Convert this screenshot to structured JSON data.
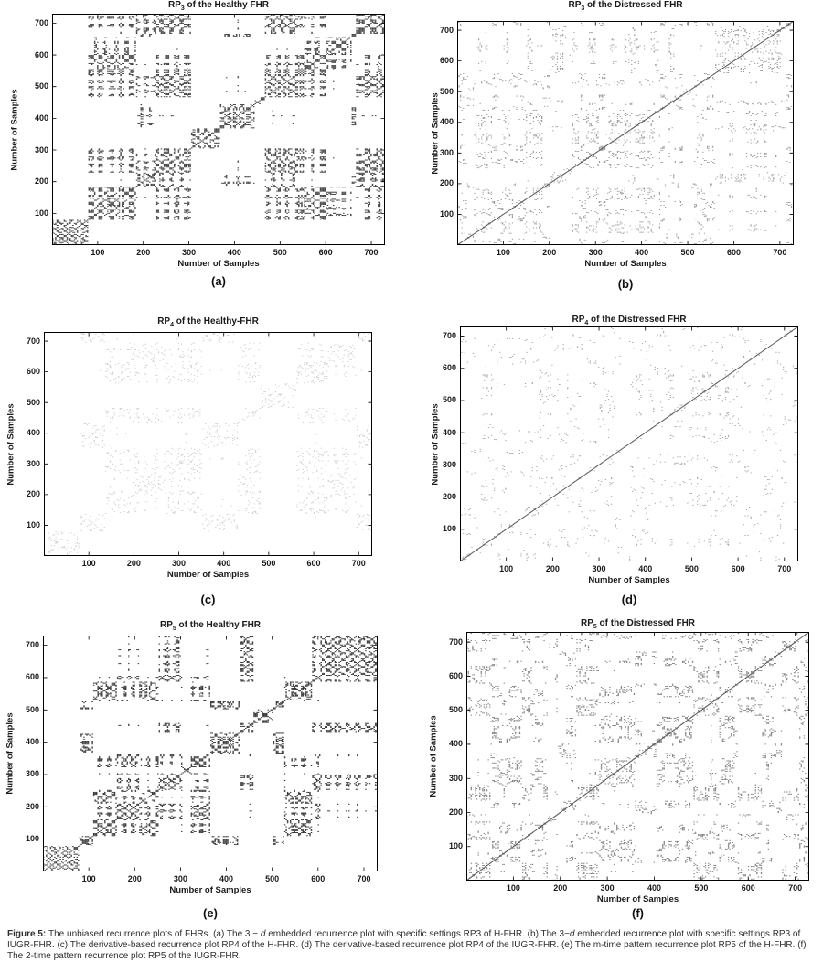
{
  "figure": {
    "caption_segments": [
      {
        "text": "Figure 5: ",
        "bold": true
      },
      {
        "text": "The unbiased recurrence plots of FHRs. (a) The 3 − ",
        "bold": false
      },
      {
        "text": "d",
        "italic": true
      },
      {
        "text": " embedded recurrence plot with specific settings RP3 of H-FHR. (b) The 3−",
        "bold": false
      },
      {
        "text": "d",
        "italic": true
      },
      {
        "text": " embedded recurrence plot with specific settings RP3 of IUGR-FHR. (c) The derivative-based recurrence plot RP4 of the H-FHR. (d) The derivative-based recurrence plot RP4 of the IUGR-FHR. (e) The m-time pattern recurrence plot RP5 of the H-FHR. (f) The 2-time pattern recurrence plot RP5 of the IUGR-FHR.",
        "bold": false
      }
    ]
  },
  "chart_data": [
    {
      "panel": "a",
      "letter": "(a)",
      "type": "heatmap",
      "subtype": "recurrence-plot",
      "title": {
        "prefix": "RP",
        "subscript": "3",
        "rest": " of the Healthy FHR"
      },
      "xlabel": "Number of Samples",
      "ylabel": "Number of Samples",
      "x_range": [
        0,
        730
      ],
      "y_range": [
        0,
        730
      ],
      "xticks": [
        100,
        200,
        300,
        400,
        500,
        600,
        700
      ],
      "yticks": [
        100,
        200,
        300,
        400,
        500,
        600,
        700
      ],
      "pattern": {
        "density": "high",
        "structure": "dense blocky checkerboard with white bands, dense lower-left corner block below sample 100",
        "diagonal_line": false,
        "dot_color": "#111111"
      }
    },
    {
      "panel": "b",
      "letter": "(b)",
      "type": "heatmap",
      "subtype": "recurrence-plot",
      "title": {
        "prefix": "RP",
        "subscript": "3",
        "rest": " of the Distressed FHR"
      },
      "xlabel": "Number of Samples",
      "ylabel": "Number of Samples",
      "x_range": [
        0,
        730
      ],
      "y_range": [
        0,
        730
      ],
      "xticks": [
        100,
        200,
        300,
        400,
        500,
        600,
        700
      ],
      "yticks": [
        100,
        200,
        300,
        400,
        500,
        600,
        700
      ],
      "pattern": {
        "density": "medium",
        "structure": "diffuse speckle with rectangular clusters, dense cluster near samples 350-470",
        "diagonal_line": true,
        "dot_color": "#222222"
      }
    },
    {
      "panel": "c",
      "letter": "(c)",
      "type": "heatmap",
      "subtype": "recurrence-plot",
      "title": {
        "prefix": "RP",
        "subscript": "4",
        "rest": " of the Healthy-FHR"
      },
      "xlabel": "Number of Samples",
      "ylabel": "Number of Samples",
      "x_range": [
        0,
        730
      ],
      "y_range": [
        0,
        730
      ],
      "xticks": [
        100,
        200,
        300,
        400,
        500,
        600,
        700
      ],
      "yticks": [
        100,
        200,
        300,
        400,
        500,
        600,
        700
      ],
      "pattern": {
        "density": "low",
        "structure": "faint light-gray blocky checkerboard, small dense block in lower-left corner",
        "diagonal_line": false,
        "dot_color": "#606060"
      }
    },
    {
      "panel": "d",
      "letter": "(d)",
      "type": "heatmap",
      "subtype": "recurrence-plot",
      "title": {
        "prefix": "RP",
        "subscript": "4",
        "rest": " of the Distressed FHR"
      },
      "xlabel": "Number of Samples",
      "ylabel": "Number of Samples",
      "x_range": [
        0,
        730
      ],
      "y_range": [
        0,
        730
      ],
      "xticks": [
        100,
        200,
        300,
        400,
        500,
        600,
        700
      ],
      "yticks": [
        100,
        200,
        300,
        400,
        500,
        600,
        700
      ],
      "pattern": {
        "density": "very-low",
        "structure": "sparse speckle with prominent continuous main diagonal",
        "diagonal_line": true,
        "dot_color": "#333333"
      }
    },
    {
      "panel": "e",
      "letter": "(e)",
      "type": "heatmap",
      "subtype": "recurrence-plot",
      "title": {
        "prefix": "RP",
        "subscript": "5",
        "rest": " of the Healthy FHR"
      },
      "xlabel": "Number of Samples",
      "ylabel": "Number of Samples",
      "x_range": [
        0,
        730
      ],
      "y_range": [
        0,
        730
      ],
      "xticks": [
        100,
        200,
        300,
        400,
        500,
        600,
        700
      ],
      "yticks": [
        100,
        200,
        300,
        400,
        500,
        600,
        700
      ],
      "pattern": {
        "density": "high",
        "structure": "dense blocky checkerboard with white bands, dense lower-left corner block below sample 100",
        "diagonal_line": false,
        "dot_color": "#111111"
      }
    },
    {
      "panel": "f",
      "letter": "(f)",
      "type": "heatmap",
      "subtype": "recurrence-plot",
      "title": {
        "prefix": "RP",
        "subscript": "5",
        "rest": " of the Distressed FHR"
      },
      "xlabel": "Number of Samples",
      "ylabel": "Number of Samples",
      "x_range": [
        0,
        730
      ],
      "y_range": [
        0,
        730
      ],
      "xticks": [
        100,
        200,
        300,
        400,
        500,
        600,
        700
      ],
      "yticks": [
        100,
        200,
        300,
        400,
        500,
        600,
        700
      ],
      "pattern": {
        "density": "medium-high",
        "structure": "diffuse speckle with rectangular clusters and prominent main diagonal",
        "diagonal_line": true,
        "dot_color": "#222222"
      }
    }
  ]
}
